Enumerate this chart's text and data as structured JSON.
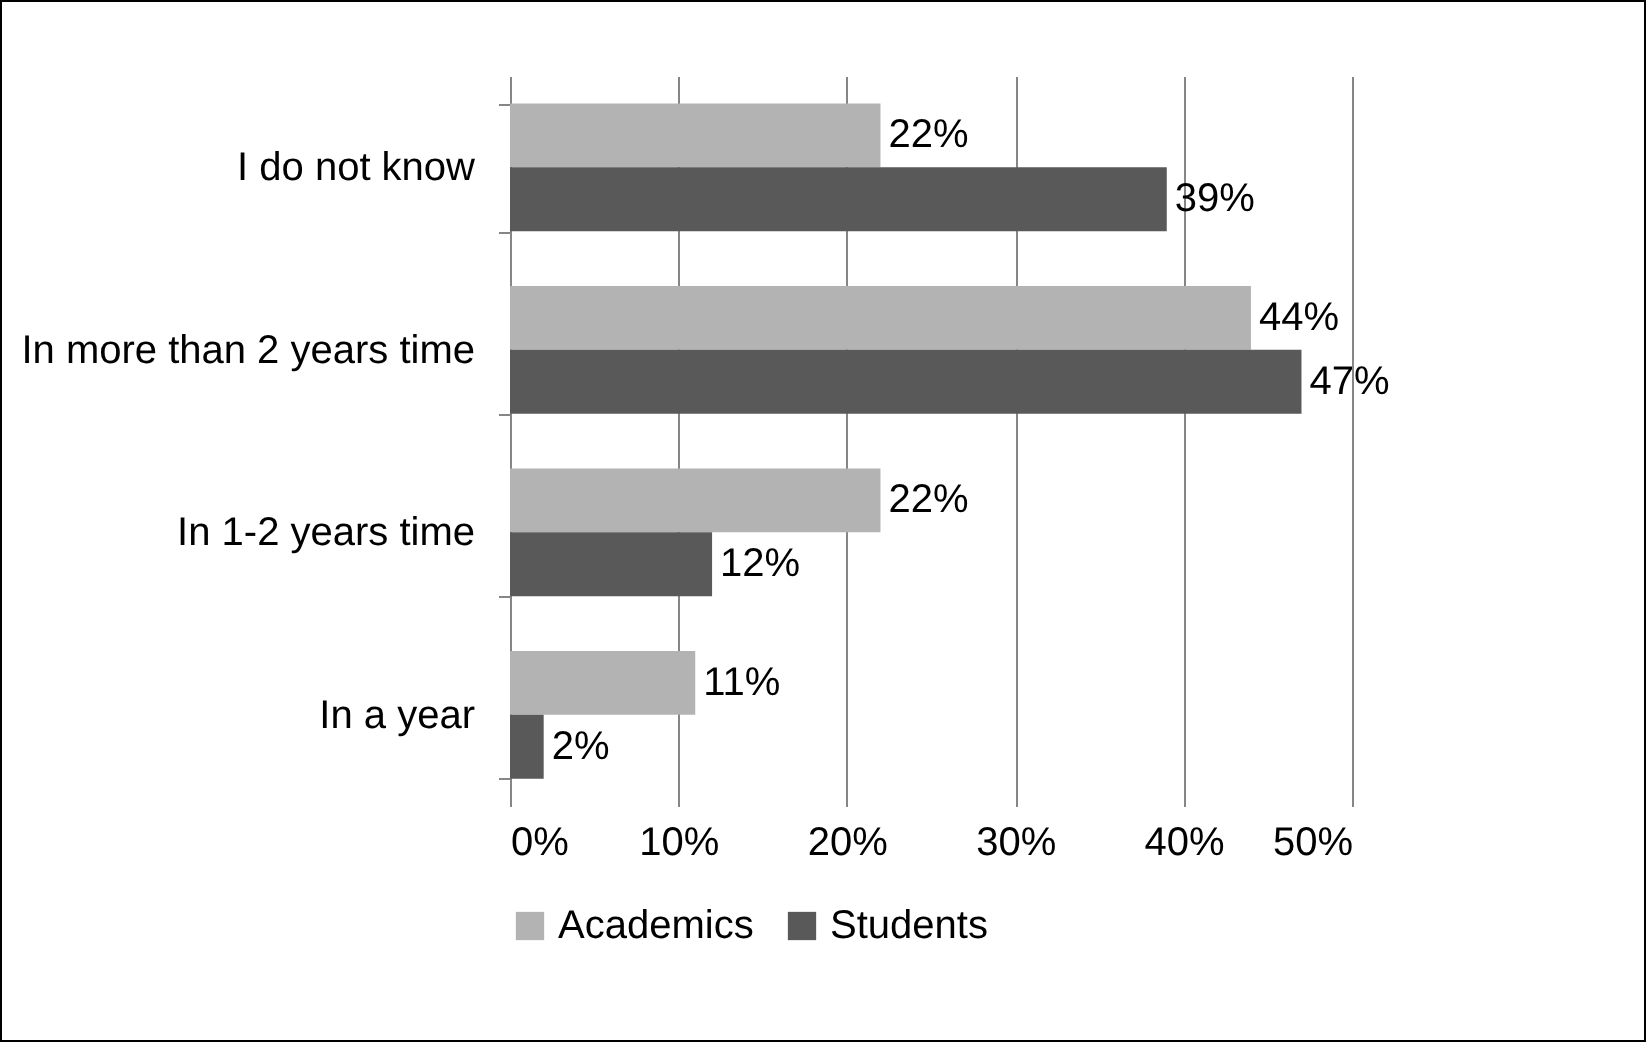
{
  "chart_data": {
    "type": "bar",
    "orientation": "horizontal",
    "categories": [
      "I do not know",
      "In more than 2 years time",
      "In 1-2 years time",
      "In a year"
    ],
    "series": [
      {
        "name": "Academics",
        "color": "#b3b3b3",
        "values": [
          22,
          44,
          22,
          11
        ],
        "value_labels": [
          "22%",
          "44%",
          "22%",
          "11%"
        ]
      },
      {
        "name": "Students",
        "color": "#595959",
        "values": [
          39,
          47,
          12,
          2
        ],
        "value_labels": [
          "39%",
          "47%",
          "12%",
          "2%"
        ]
      }
    ],
    "xlim": [
      0,
      50
    ],
    "xticks": [
      {
        "value": 0,
        "label": "0%"
      },
      {
        "value": 10,
        "label": "10%"
      },
      {
        "value": 20,
        "label": "20%"
      },
      {
        "value": 30,
        "label": "30%"
      },
      {
        "value": 40,
        "label": "40%"
      },
      {
        "value": 50,
        "label": "50%"
      }
    ],
    "grid": "x",
    "legend": "bottom"
  }
}
